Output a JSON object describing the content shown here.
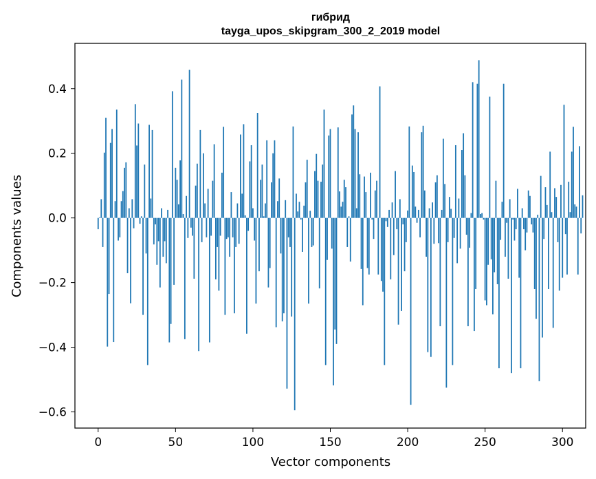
{
  "chart_data": {
    "type": "bar",
    "title_line1": "гибрид",
    "title_line2": "tayga_upos_skipgram_300_2_2019 model",
    "xlabel": "Vector components",
    "ylabel": "Components values",
    "xlim": [
      -15,
      315
    ],
    "ylim": [
      -0.65,
      0.54
    ],
    "xticks": [
      0,
      50,
      100,
      150,
      200,
      250,
      300
    ],
    "xtick_labels": [
      "0",
      "50",
      "100",
      "150",
      "200",
      "250",
      "300"
    ],
    "yticks": [
      -0.6,
      -0.4,
      -0.2,
      0.0,
      0.2,
      0.4
    ],
    "ytick_labels": [
      "−0.6",
      "−0.4",
      "−0.2",
      "0.0",
      "0.2",
      "0.4"
    ],
    "bar_color": "#1f77b4",
    "values": [
      -0.035,
      0.002,
      0.058,
      -0.09,
      0.202,
      0.31,
      -0.398,
      -0.235,
      0.232,
      0.275,
      -0.384,
      0.052,
      0.335,
      -0.07,
      -0.06,
      0.052,
      0.083,
      0.155,
      0.172,
      -0.171,
      0.03,
      -0.264,
      0.058,
      -0.032,
      0.352,
      0.224,
      0.292,
      -0.018,
      0.005,
      -0.3,
      0.165,
      -0.11,
      -0.455,
      0.288,
      0.06,
      0.272,
      -0.082,
      -0.02,
      -0.145,
      -0.072,
      -0.215,
      0.03,
      -0.12,
      -0.072,
      -0.14,
      0.025,
      -0.385,
      -0.328,
      0.392,
      -0.207,
      0.155,
      0.118,
      0.042,
      0.178,
      0.428,
      0.012,
      -0.375,
      0.068,
      -0.062,
      0.458,
      -0.03,
      -0.055,
      -0.188,
      0.1,
      0.168,
      -0.412,
      0.272,
      -0.075,
      0.2,
      0.045,
      -0.06,
      0.09,
      -0.385,
      -0.055,
      0.115,
      0.228,
      -0.19,
      -0.09,
      -0.225,
      -0.055,
      0.14,
      0.282,
      -0.3,
      -0.065,
      -0.06,
      -0.12,
      0.08,
      -0.06,
      -0.295,
      -0.09,
      0.045,
      -0.08,
      0.258,
      0.075,
      0.29,
      0.008,
      -0.358,
      -0.04,
      0.175,
      0.225,
      0.03,
      -0.07,
      -0.265,
      0.325,
      -0.165,
      0.118,
      0.165,
      0.005,
      0.045,
      0.24,
      -0.215,
      -0.155,
      0.11,
      0.2,
      0.24,
      -0.338,
      0.052,
      0.122,
      -0.11,
      -0.32,
      -0.295,
      0.055,
      -0.528,
      -0.06,
      -0.09,
      -0.305,
      0.283,
      -0.595,
      0.075,
      0.02,
      0.05,
      -0.005,
      -0.105,
      0.038,
      0.11,
      0.18,
      -0.265,
      0.022,
      -0.09,
      -0.085,
      0.145,
      0.198,
      0.115,
      -0.218,
      0.112,
      0.165,
      0.335,
      -0.455,
      -0.13,
      0.255,
      0.275,
      -0.095,
      -0.518,
      -0.345,
      -0.39,
      0.28,
      0.082,
      0.035,
      0.05,
      0.118,
      0.095,
      -0.09,
      0.005,
      -0.135,
      0.32,
      0.348,
      0.275,
      0.03,
      0.265,
      0.135,
      -0.158,
      -0.27,
      0.128,
      0.08,
      -0.155,
      -0.175,
      0.14,
      -0.005,
      -0.065,
      0.085,
      0.115,
      -0.175,
      0.407,
      -0.195,
      -0.228,
      -0.455,
      -0.01,
      -0.028,
      0.025,
      -0.19,
      0.048,
      -0.115,
      0.145,
      -0.035,
      -0.33,
      0.058,
      -0.288,
      -0.02,
      -0.165,
      -0.075,
      0.023,
      0.283,
      -0.578,
      0.162,
      0.142,
      0.035,
      -0.015,
      0.025,
      -0.06,
      0.265,
      0.285,
      0.085,
      -0.12,
      -0.415,
      0.03,
      -0.43,
      0.048,
      -0.08,
      0.11,
      0.132,
      -0.078,
      -0.335,
      0.025,
      0.245,
      0.105,
      -0.525,
      -0.075,
      0.065,
      0.028,
      -0.455,
      -0.062,
      0.225,
      -0.14,
      0.06,
      -0.095,
      0.21,
      0.262,
      0.132,
      -0.052,
      -0.335,
      -0.092,
      0.015,
      0.42,
      -0.35,
      -0.22,
      0.415,
      0.488,
      0.012,
      0.015,
      -0.005,
      -0.255,
      -0.27,
      -0.145,
      0.375,
      -0.128,
      -0.298,
      -0.168,
      0.115,
      -0.205,
      -0.465,
      -0.068,
      0.05,
      0.415,
      -0.12,
      -0.015,
      -0.188,
      0.058,
      -0.48,
      -0.005,
      -0.07,
      -0.035,
      0.09,
      -0.185,
      -0.465,
      0.03,
      -0.035,
      -0.1,
      -0.045,
      0.085,
      0.068,
      -0.02,
      -0.045,
      -0.22,
      -0.312,
      0.01,
      -0.505,
      0.13,
      -0.37,
      -0.065,
      0.095,
      0.04,
      -0.22,
      0.205,
      0.018,
      -0.34,
      0.092,
      0.065,
      -0.075,
      -0.225,
      0.102,
      -0.185,
      0.35,
      -0.05,
      -0.175,
      0.112,
      0.018,
      0.205,
      0.282,
      0.042,
      0.035,
      -0.175,
      0.222,
      -0.048,
      0.07
    ]
  }
}
